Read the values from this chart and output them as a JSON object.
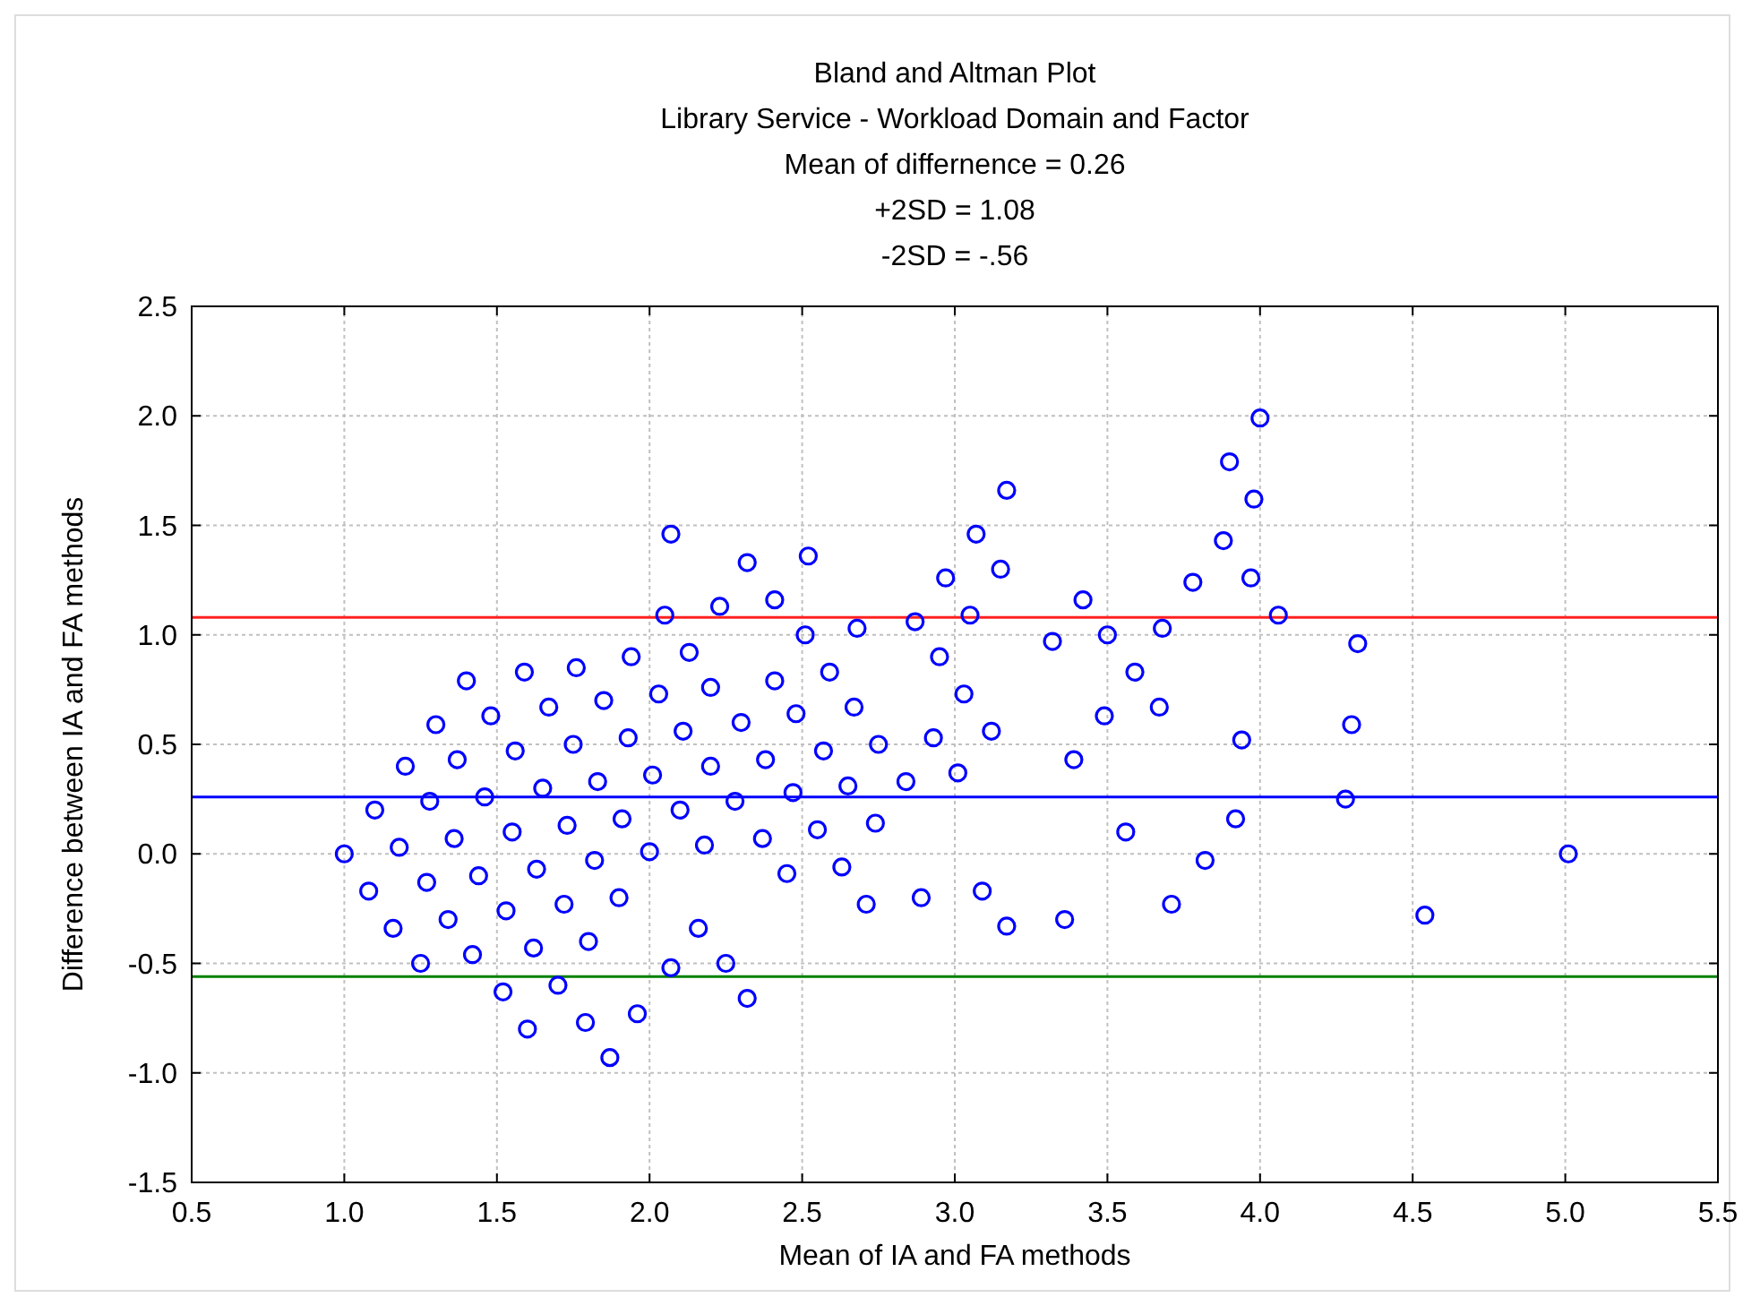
{
  "chart_data": {
    "type": "scatter",
    "title": "Bland and Altman Plot",
    "subtitle": "Library Service - Workload Domain and Factor",
    "annotations": [
      "Mean of differnence = 0.26",
      "+2SD = 1.08",
      "-2SD = -.56"
    ],
    "xlabel": "Mean of IA and FA methods",
    "ylabel": "Difference between IA and FA methods",
    "xlim": [
      0.5,
      5.5
    ],
    "xticks": [
      {
        "value": 0.5,
        "label": "0.5"
      },
      {
        "value": 1,
        "label": "1.0"
      },
      {
        "value": 1.5,
        "label": "1.5"
      },
      {
        "value": 2,
        "label": "2.0"
      },
      {
        "value": 2.5,
        "label": "2.5"
      },
      {
        "value": 3,
        "label": "3.0"
      },
      {
        "value": 3.5,
        "label": "3.5"
      },
      {
        "value": 4,
        "label": "4.0"
      },
      {
        "value": 4.5,
        "label": "4.5"
      },
      {
        "value": 5,
        "label": "5.0"
      },
      {
        "value": 5.5,
        "label": "5.5"
      }
    ],
    "ylim": [
      -1.5,
      2.5
    ],
    "yticks": [
      {
        "value": -1.5,
        "label": "-1.5"
      },
      {
        "value": -1,
        "label": "-1.0"
      },
      {
        "value": -0.5,
        "label": "-0.5"
      },
      {
        "value": 0,
        "label": "0.0"
      },
      {
        "value": 0.5,
        "label": "0.5"
      },
      {
        "value": 1,
        "label": "1.0"
      },
      {
        "value": 1.5,
        "label": "1.5"
      },
      {
        "value": 2,
        "label": "2.0"
      },
      {
        "value": 2.5,
        "label": "2.5"
      }
    ],
    "grid": true,
    "marker": "circle",
    "ref_lines": [
      {
        "axis": "y",
        "value": 1.08,
        "color": "#ff2020"
      },
      {
        "axis": "y",
        "value": 0.26,
        "color": "#0000ff"
      },
      {
        "axis": "y",
        "value": -0.56,
        "color": "#008000"
      }
    ],
    "series": [
      {
        "color": "#0000ff",
        "x": [
          1.0,
          1.08,
          1.1,
          1.16,
          1.18,
          1.2,
          1.25,
          1.27,
          1.28,
          1.3,
          1.34,
          1.36,
          1.37,
          1.4,
          1.42,
          1.44,
          1.46,
          1.48,
          1.52,
          1.53,
          1.55,
          1.56,
          1.59,
          1.6,
          1.62,
          1.63,
          1.65,
          1.67,
          1.7,
          1.72,
          1.73,
          1.75,
          1.76,
          1.79,
          1.8,
          1.82,
          1.83,
          1.85,
          1.87,
          1.9,
          1.91,
          1.93,
          1.94,
          1.96,
          2.0,
          2.01,
          2.03,
          2.05,
          2.07,
          2.07,
          2.1,
          2.11,
          2.13,
          2.16,
          2.18,
          2.2,
          2.2,
          2.23,
          2.25,
          2.28,
          2.3,
          2.32,
          2.32,
          2.37,
          2.38,
          2.41,
          2.41,
          2.45,
          2.47,
          2.48,
          2.51,
          2.52,
          2.55,
          2.57,
          2.59,
          2.63,
          2.65,
          2.67,
          2.68,
          2.71,
          2.74,
          2.75,
          2.84,
          2.87,
          2.89,
          2.93,
          2.95,
          2.97,
          3.01,
          3.03,
          3.05,
          3.07,
          3.09,
          3.12,
          3.15,
          3.17,
          3.17,
          3.32,
          3.36,
          3.39,
          3.42,
          3.5,
          3.49,
          3.56,
          3.59,
          3.67,
          3.68,
          3.71,
          3.78,
          3.82,
          3.88,
          3.9,
          3.92,
          3.94,
          3.97,
          3.98,
          4.0,
          4.06,
          4.28,
          4.3,
          4.32,
          4.54,
          5.01
        ],
        "values": [
          0.0,
          -0.17,
          0.2,
          -0.34,
          0.03,
          0.4,
          -0.5,
          -0.13,
          0.24,
          0.59,
          -0.3,
          0.07,
          0.43,
          0.79,
          -0.46,
          -0.1,
          0.26,
          0.63,
          -0.63,
          -0.26,
          0.1,
          0.47,
          0.83,
          -0.8,
          -0.43,
          -0.07,
          0.3,
          0.67,
          -0.6,
          -0.23,
          0.13,
          0.5,
          0.85,
          -0.77,
          -0.4,
          -0.03,
          0.33,
          0.7,
          -0.93,
          -0.2,
          0.16,
          0.53,
          0.9,
          -0.73,
          0.01,
          0.36,
          0.73,
          1.09,
          -0.52,
          1.46,
          0.2,
          0.56,
          0.92,
          -0.34,
          0.04,
          0.4,
          0.76,
          1.13,
          -0.5,
          0.24,
          0.6,
          -0.66,
          1.33,
          0.07,
          0.43,
          0.79,
          1.16,
          -0.09,
          0.28,
          0.64,
          1.0,
          1.36,
          0.11,
          0.47,
          0.83,
          -0.06,
          0.31,
          0.67,
          1.03,
          -0.23,
          0.14,
          0.5,
          0.33,
          1.06,
          -0.2,
          0.53,
          0.9,
          1.26,
          0.37,
          0.73,
          1.09,
          1.46,
          -0.17,
          0.56,
          1.3,
          -0.33,
          1.66,
          0.97,
          -0.3,
          0.43,
          1.16,
          1.0,
          0.63,
          0.1,
          0.83,
          0.67,
          1.03,
          -0.23,
          1.24,
          -0.03,
          1.43,
          1.79,
          0.16,
          0.52,
          1.26,
          1.62,
          1.99,
          1.09,
          0.25,
          0.59,
          0.96,
          -0.28,
          0.0
        ]
      }
    ]
  }
}
